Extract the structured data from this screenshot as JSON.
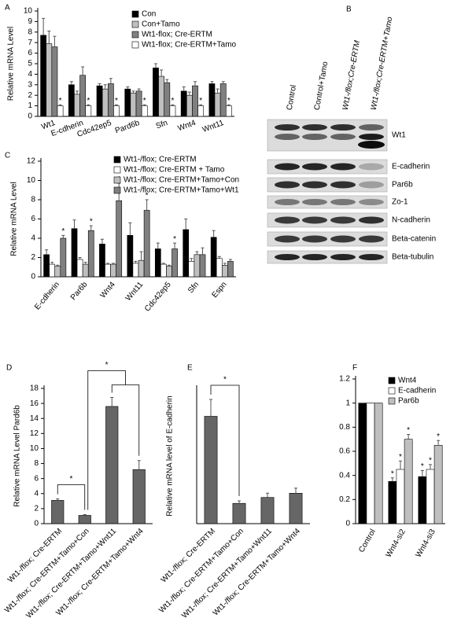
{
  "chart_data": [
    {
      "type": "bar",
      "panel": "A",
      "ylabel": "Relative mRNA Level",
      "categories": [
        "Wt1",
        "E-cdherin",
        "Cdc42ep5",
        "Pard6b",
        "Sfn",
        "Wnt4",
        "Wnt11"
      ],
      "ylim": [
        0,
        10
      ],
      "yticks": [
        0,
        1,
        2,
        3,
        4,
        5,
        6,
        7,
        8,
        9,
        10
      ],
      "legend": "upper right",
      "series": [
        {
          "name": "Con",
          "color": "#000000",
          "values": [
            7.7,
            3.0,
            2.9,
            2.6,
            4.6,
            2.4,
            3.1
          ],
          "errors": [
            1.6,
            0.3,
            0.2,
            0.2,
            0.4,
            0.4,
            0.2
          ]
        },
        {
          "name": "Con+Tamo",
          "color": "#bfbfbf",
          "values": [
            6.9,
            2.1,
            2.6,
            2.2,
            3.8,
            2.0,
            2.2
          ],
          "errors": [
            1.2,
            0.3,
            0.4,
            0.2,
            0.6,
            0.3,
            0.4
          ]
        },
        {
          "name": "Wt1-flox; Cre-ERTM",
          "color": "#808080",
          "values": [
            6.6,
            3.9,
            3.1,
            2.4,
            3.2,
            2.9,
            3.1
          ],
          "errors": [
            1.0,
            0.8,
            0.5,
            0.2,
            0.3,
            0.4,
            0.2
          ]
        },
        {
          "name": "Wt1-flox; Cre-ERTM+Tamo",
          "color": "#ffffff",
          "values": [
            1.0,
            1.0,
            1.0,
            1.0,
            1.0,
            1.0,
            1.0
          ],
          "errors": [
            0.1,
            0.1,
            0.1,
            0.1,
            0.1,
            0.1,
            0.1
          ],
          "significance": [
            "*",
            "*",
            "*",
            "*",
            "*",
            "*",
            "*"
          ]
        }
      ]
    },
    {
      "type": "western-blot",
      "panel": "B",
      "lanes": [
        "Control",
        "Control+Tamo",
        "Wt1-/flox;Cre-ERTM",
        "Wt1-/flox;Cre-ERTM+Tamo"
      ],
      "rows": [
        "Wt1",
        "E-cadherin",
        "Par6b",
        "Zo-1",
        "N-cadherin",
        "Beta-catenin",
        "Beta-tubulin"
      ]
    },
    {
      "type": "bar",
      "panel": "C",
      "ylabel": "Relative mRNA Level",
      "categories": [
        "E-cdherin",
        "Par6b",
        "Wnt4",
        "Wnt11",
        "Cdc42ep5",
        "Sfn",
        "Espn"
      ],
      "ylim": [
        0,
        12
      ],
      "yticks": [
        0,
        2,
        4,
        6,
        8,
        10,
        12
      ],
      "legend": "upper right",
      "series": [
        {
          "name": "Wt1-/flox; Cre-ERTM",
          "color": "#000000",
          "values": [
            2.3,
            5.0,
            3.4,
            4.3,
            2.9,
            4.9,
            4.1
          ],
          "errors": [
            0.5,
            0.9,
            0.5,
            1.3,
            0.6,
            1.1,
            0.7
          ]
        },
        {
          "name": "Wt1-/flox; Cre-ERTM + Tamo",
          "color": "#ffffff",
          "values": [
            1.3,
            1.8,
            1.3,
            1.4,
            1.3,
            1.6,
            1.9
          ],
          "errors": [
            0.2,
            0.2,
            0.1,
            0.2,
            0.1,
            0.3,
            0.2
          ]
        },
        {
          "name": "Wt1-/flox; Cre-ERTM+Tamo+Con",
          "color": "#bfbfbf",
          "values": [
            1.1,
            1.3,
            1.3,
            1.7,
            1.1,
            2.3,
            1.2
          ],
          "errors": [
            0.1,
            0.2,
            0.1,
            0.9,
            0.1,
            0.3,
            0.2
          ]
        },
        {
          "name": "Wt1-/flox; Cre-ERTM+Tamo+Wt1",
          "color": "#808080",
          "values": [
            4.0,
            4.8,
            7.9,
            6.9,
            2.9,
            2.3,
            1.6
          ],
          "errors": [
            0.3,
            0.5,
            1.8,
            1.1,
            0.6,
            0.7,
            0.2
          ],
          "significance": [
            "*",
            "*",
            "*",
            "*",
            "*",
            null,
            null
          ]
        }
      ]
    },
    {
      "type": "bar",
      "panel": "D",
      "ylabel": "Relative mRNA Level Pard6b",
      "categories": [
        "Wt1-/flox; Cre-ERTM",
        "Wt1-/flox; Cre-ERTM+Tamo+Con",
        "Wt1-/flox; Cre-ERTM+Tamo+Wnt11",
        "Wt1-/flox; Cre-ERTM+Tamo+Wnt4"
      ],
      "values": [
        3.1,
        1.1,
        15.6,
        7.2
      ],
      "errors": [
        0.2,
        0.1,
        1.2,
        1.2
      ],
      "color": "#666666",
      "ylim": [
        0,
        18
      ],
      "yticks": [
        0,
        2,
        4,
        6,
        8,
        10,
        12,
        14,
        16,
        18
      ],
      "annotations": [
        "*",
        "*"
      ]
    },
    {
      "type": "bar",
      "panel": "E",
      "ylabel": "Relative mRNA level of E-cadherin",
      "categories": [
        "Wt1-/flox; Cre-ERTM",
        "Wt1-/flox; Cre-ERTM+Tamo+Con",
        "Wt1-/flox; Cre-ERTM+Tamo+Wnt11",
        "Wt1-/flox; Cre-ERTM+Tamo+Wnt4"
      ],
      "values": [
        6.35,
        1.2,
        1.55,
        1.8
      ],
      "errors": [
        1.0,
        0.15,
        0.25,
        0.3
      ],
      "color": "#666666",
      "ylim": [
        0,
        8
      ],
      "annotations": [
        "*"
      ]
    },
    {
      "type": "bar",
      "panel": "F",
      "categories": [
        "Control",
        "Wnt4-si2",
        "Wnt4-si3"
      ],
      "ylim": [
        0,
        1.2
      ],
      "yticks": [
        0,
        0.2,
        0.4,
        0.6,
        0.8,
        1,
        1.2
      ],
      "legend": "upper right",
      "series": [
        {
          "name": "Wnt4",
          "color": "#000000",
          "values": [
            1,
            0.35,
            0.39
          ],
          "errors": [
            0,
            0.03,
            0.05
          ],
          "significance": [
            null,
            "*",
            "*"
          ]
        },
        {
          "name": "E-cadherin",
          "color": "#ffffff",
          "values": [
            1,
            0.45,
            0.45
          ],
          "errors": [
            0,
            0.07,
            0.04
          ],
          "significance": [
            null,
            "*",
            "*"
          ]
        },
        {
          "name": "Par6b",
          "color": "#bfbfbf",
          "values": [
            1,
            0.7,
            0.65
          ],
          "errors": [
            0,
            0.04,
            0.04
          ],
          "significance": [
            null,
            "*",
            "*"
          ]
        }
      ]
    }
  ]
}
